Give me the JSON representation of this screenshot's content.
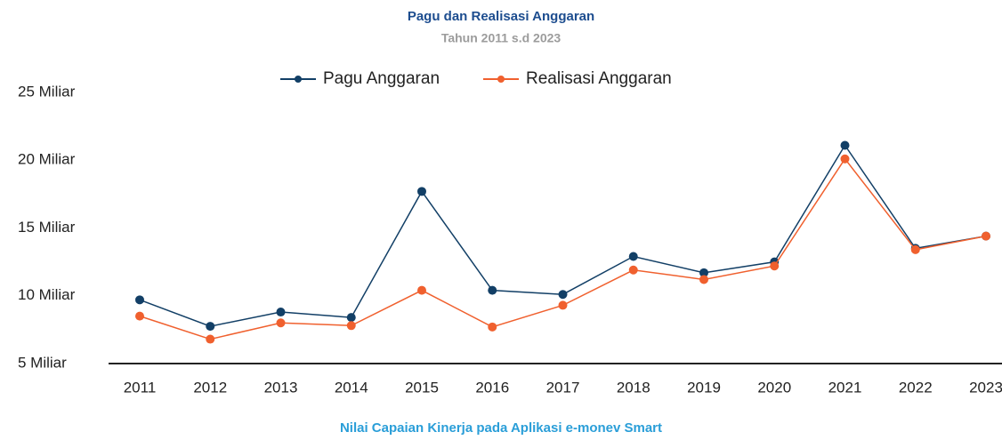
{
  "chart_data": {
    "type": "line",
    "title": "Pagu dan Realisasi Anggaran",
    "subtitle": "Tahun 2011 s.d 2023",
    "caption": "Nilai Capaian Kinerja pada Aplikasi e-monev Smart",
    "categories": [
      "2011",
      "2012",
      "2013",
      "2014",
      "2015",
      "2016",
      "2017",
      "2018",
      "2019",
      "2020",
      "2021",
      "2022",
      "2023"
    ],
    "series": [
      {
        "name": "Pagu Anggaran",
        "color": "#123f66",
        "values": [
          9.7,
          7.75,
          8.8,
          8.4,
          17.7,
          10.4,
          10.1,
          12.9,
          11.7,
          12.5,
          21.1,
          13.5,
          14.4
        ]
      },
      {
        "name": "Realisasi Anggaran",
        "color": "#f0602e",
        "values": [
          8.5,
          6.8,
          8.0,
          7.8,
          10.4,
          7.7,
          9.3,
          11.9,
          11.2,
          12.2,
          20.1,
          13.4,
          14.4
        ]
      }
    ],
    "ylim": [
      5,
      25
    ],
    "yticks": [
      {
        "value": 5,
        "label": "5 Miliar"
      },
      {
        "value": 10,
        "label": "10 Miliar"
      },
      {
        "value": 15,
        "label": "15 Miliar"
      },
      {
        "value": 20,
        "label": "20 Miliar"
      },
      {
        "value": 25,
        "label": "25 Miliar"
      }
    ],
    "legend": "top",
    "grid": false
  }
}
